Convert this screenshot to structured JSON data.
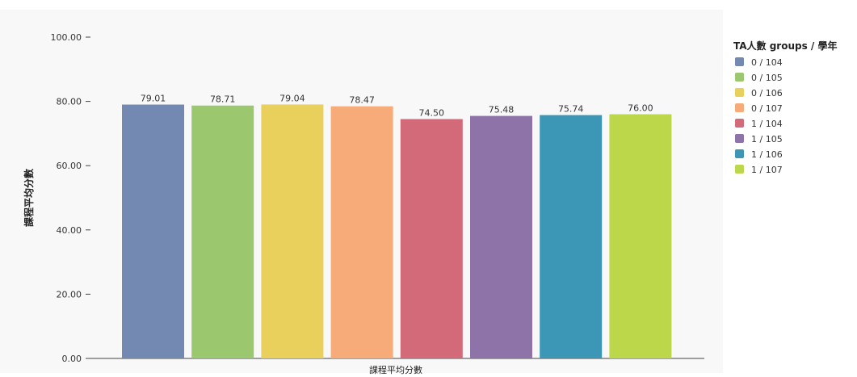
{
  "chart_data": {
    "type": "bar",
    "categories": [
      "0 / 104",
      "0 / 105",
      "0 / 106",
      "0 / 107",
      "1 / 104",
      "1 / 105",
      "1 / 106",
      "1 / 107"
    ],
    "values": [
      79.01,
      78.71,
      79.04,
      78.47,
      74.5,
      75.48,
      75.74,
      76.0
    ],
    "value_labels": [
      "79.01",
      "78.71",
      "79.04",
      "78.47",
      "74.50",
      "75.48",
      "75.74",
      "76.00"
    ],
    "colors": [
      "#7389b2",
      "#9bc76f",
      "#e9cf5c",
      "#f6ab79",
      "#d26a79",
      "#8e73a8",
      "#3b97b5",
      "#bcd84a"
    ],
    "ylabel": "課程平均分數",
    "xlabel": "課程平均分數",
    "ylim": [
      0,
      100
    ],
    "y_ticks": [
      "0.00",
      "20.00",
      "40.00",
      "60.00",
      "80.00",
      "100.00"
    ],
    "grid": false,
    "legend": {
      "title": "TA人數 groups / 學年",
      "position": "right"
    }
  }
}
